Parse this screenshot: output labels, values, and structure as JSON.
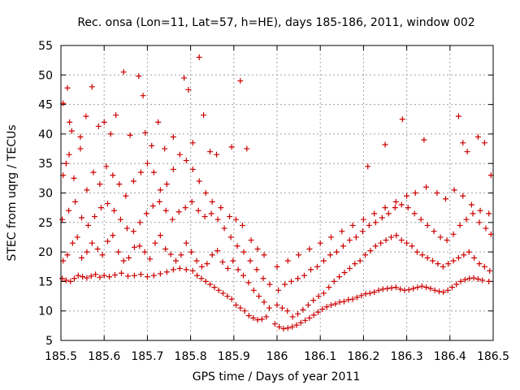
{
  "chart_data": {
    "type": "scatter",
    "title": "Rec. onsa (Lon=11, Lat=57, h=HE), days 185-186, 2011, window 002",
    "xlabel": "GPS time / Days of year 2011",
    "ylabel": "STEC from uqrg / TECUs",
    "xlim": [
      185.5,
      186.5
    ],
    "ylim": [
      5,
      55
    ],
    "xticks": [
      "185.5",
      "185.6",
      "185.7",
      "185.8",
      "185.9",
      "186",
      "186.1",
      "186.2",
      "186.3",
      "186.4",
      "186.5"
    ],
    "yticks": [
      "5",
      "10",
      "15",
      "20",
      "25",
      "30",
      "35",
      "40",
      "45",
      "50",
      "55"
    ],
    "grid": true,
    "legend": "none",
    "marker": "plus",
    "color": "#cc0000",
    "points": [
      [
        185.503,
        15.5
      ],
      [
        185.512,
        15.2
      ],
      [
        185.522,
        15.0
      ],
      [
        185.531,
        15.5
      ],
      [
        185.54,
        16.0
      ],
      [
        185.55,
        15.8
      ],
      [
        185.56,
        15.6
      ],
      [
        185.57,
        15.9
      ],
      [
        185.58,
        16.2
      ],
      [
        185.59,
        15.7
      ],
      [
        185.6,
        16.0
      ],
      [
        185.612,
        15.8
      ],
      [
        185.625,
        16.1
      ],
      [
        185.64,
        16.4
      ],
      [
        185.655,
        15.9
      ],
      [
        185.67,
        16.0
      ],
      [
        185.685,
        16.2
      ],
      [
        185.7,
        15.8
      ],
      [
        185.715,
        16.0
      ],
      [
        185.73,
        16.3
      ],
      [
        185.745,
        16.6
      ],
      [
        185.76,
        17.0
      ],
      [
        185.775,
        17.2
      ],
      [
        185.79,
        17.0
      ],
      [
        185.805,
        16.8
      ],
      [
        185.815,
        16.0
      ],
      [
        185.825,
        15.5
      ],
      [
        185.835,
        15.0
      ],
      [
        185.845,
        14.5
      ],
      [
        185.855,
        14.0
      ],
      [
        185.865,
        13.5
      ],
      [
        185.875,
        13.0
      ],
      [
        185.885,
        12.5
      ],
      [
        185.895,
        12.0
      ],
      [
        185.905,
        11.0
      ],
      [
        185.915,
        10.5
      ],
      [
        185.925,
        10.0
      ],
      [
        185.935,
        9.2
      ],
      [
        185.945,
        8.8
      ],
      [
        185.955,
        8.5
      ],
      [
        185.965,
        8.6
      ],
      [
        185.975,
        9.0
      ],
      [
        185.995,
        7.8
      ],
      [
        186.005,
        7.3
      ],
      [
        186.015,
        7.0
      ],
      [
        186.025,
        7.1
      ],
      [
        186.035,
        7.3
      ],
      [
        186.045,
        7.6
      ],
      [
        186.055,
        8.0
      ],
      [
        186.065,
        8.4
      ],
      [
        186.075,
        8.8
      ],
      [
        186.085,
        9.3
      ],
      [
        186.095,
        9.8
      ],
      [
        186.105,
        10.3
      ],
      [
        186.115,
        10.7
      ],
      [
        186.125,
        11.0
      ],
      [
        186.135,
        11.2
      ],
      [
        186.145,
        11.5
      ],
      [
        186.155,
        11.6
      ],
      [
        186.165,
        11.9
      ],
      [
        186.175,
        12.0
      ],
      [
        186.185,
        12.3
      ],
      [
        186.195,
        12.6
      ],
      [
        186.205,
        12.9
      ],
      [
        186.215,
        13.0
      ],
      [
        186.225,
        13.2
      ],
      [
        186.235,
        13.5
      ],
      [
        186.245,
        13.7
      ],
      [
        186.255,
        13.8
      ],
      [
        186.265,
        13.9
      ],
      [
        186.275,
        14.0
      ],
      [
        186.285,
        13.7
      ],
      [
        186.295,
        13.5
      ],
      [
        186.305,
        13.6
      ],
      [
        186.315,
        13.8
      ],
      [
        186.325,
        14.0
      ],
      [
        186.335,
        14.2
      ],
      [
        186.345,
        14.0
      ],
      [
        186.355,
        13.8
      ],
      [
        186.365,
        13.5
      ],
      [
        186.375,
        13.3
      ],
      [
        186.385,
        13.2
      ],
      [
        186.395,
        13.5
      ],
      [
        186.405,
        14.0
      ],
      [
        186.415,
        14.5
      ],
      [
        186.425,
        15.0
      ],
      [
        186.435,
        15.3
      ],
      [
        186.445,
        15.5
      ],
      [
        186.455,
        15.6
      ],
      [
        186.465,
        15.4
      ],
      [
        186.475,
        15.2
      ],
      [
        186.49,
        15.0
      ],
      [
        185.505,
        18.5
      ],
      [
        185.515,
        19.5
      ],
      [
        185.527,
        21.5
      ],
      [
        185.538,
        22.5
      ],
      [
        185.548,
        19.0
      ],
      [
        185.56,
        20.0
      ],
      [
        185.572,
        21.5
      ],
      [
        185.585,
        20.5
      ],
      [
        185.596,
        19.5
      ],
      [
        185.608,
        21.8
      ],
      [
        185.62,
        22.8
      ],
      [
        185.633,
        20.0
      ],
      [
        185.645,
        18.5
      ],
      [
        185.657,
        19.0
      ],
      [
        185.67,
        20.8
      ],
      [
        185.682,
        21.0
      ],
      [
        185.694,
        20.0
      ],
      [
        185.706,
        18.8
      ],
      [
        185.718,
        21.5
      ],
      [
        185.73,
        22.8
      ],
      [
        185.742,
        20.5
      ],
      [
        185.754,
        19.6
      ],
      [
        185.766,
        18.5
      ],
      [
        185.778,
        19.5
      ],
      [
        185.79,
        21.5
      ],
      [
        185.802,
        20.0
      ],
      [
        185.814,
        18.5
      ],
      [
        185.826,
        17.5
      ],
      [
        185.838,
        18.0
      ],
      [
        185.85,
        19.5
      ],
      [
        185.862,
        20.2
      ],
      [
        185.874,
        18.3
      ],
      [
        185.886,
        17.2
      ],
      [
        185.898,
        18.5
      ],
      [
        185.91,
        17.0
      ],
      [
        185.922,
        16.0
      ],
      [
        185.934,
        14.8
      ],
      [
        185.946,
        13.5
      ],
      [
        185.958,
        12.5
      ],
      [
        185.97,
        11.5
      ],
      [
        185.982,
        10.5
      ],
      [
        186.0,
        11.0
      ],
      [
        186.012,
        10.5
      ],
      [
        186.024,
        10.0
      ],
      [
        186.036,
        9.0
      ],
      [
        186.048,
        9.5
      ],
      [
        186.06,
        10.2
      ],
      [
        186.072,
        11.0
      ],
      [
        186.084,
        11.8
      ],
      [
        186.096,
        12.5
      ],
      [
        186.108,
        13.0
      ],
      [
        186.12,
        14.0
      ],
      [
        186.132,
        15.0
      ],
      [
        186.144,
        15.8
      ],
      [
        186.156,
        16.5
      ],
      [
        186.168,
        17.2
      ],
      [
        186.18,
        18.0
      ],
      [
        186.192,
        18.5
      ],
      [
        186.204,
        19.5
      ],
      [
        186.216,
        20.2
      ],
      [
        186.228,
        21.0
      ],
      [
        186.24,
        21.5
      ],
      [
        186.252,
        22.0
      ],
      [
        186.264,
        22.5
      ],
      [
        186.276,
        22.8
      ],
      [
        186.288,
        22.0
      ],
      [
        186.3,
        21.5
      ],
      [
        186.312,
        21.0
      ],
      [
        186.324,
        20.0
      ],
      [
        186.336,
        19.5
      ],
      [
        186.348,
        19.0
      ],
      [
        186.36,
        18.5
      ],
      [
        186.372,
        18.0
      ],
      [
        186.384,
        17.5
      ],
      [
        186.396,
        18.0
      ],
      [
        186.408,
        18.5
      ],
      [
        186.42,
        19.0
      ],
      [
        186.432,
        19.5
      ],
      [
        186.444,
        20.0
      ],
      [
        186.456,
        19.0
      ],
      [
        186.468,
        18.0
      ],
      [
        186.48,
        17.5
      ],
      [
        186.492,
        16.8
      ],
      [
        185.503,
        25.5
      ],
      [
        185.518,
        27.0
      ],
      [
        185.533,
        28.5
      ],
      [
        185.548,
        25.8
      ],
      [
        185.563,
        24.5
      ],
      [
        185.578,
        26.0
      ],
      [
        185.593,
        27.5
      ],
      [
        185.608,
        28.2
      ],
      [
        185.623,
        27.0
      ],
      [
        185.638,
        25.5
      ],
      [
        185.653,
        24.0
      ],
      [
        185.668,
        23.5
      ],
      [
        185.683,
        25.0
      ],
      [
        185.698,
        26.5
      ],
      [
        185.713,
        27.8
      ],
      [
        185.728,
        28.5
      ],
      [
        185.743,
        27.0
      ],
      [
        185.758,
        25.5
      ],
      [
        185.773,
        26.8
      ],
      [
        185.788,
        27.5
      ],
      [
        185.803,
        28.5
      ],
      [
        185.818,
        27.0
      ],
      [
        185.833,
        26.0
      ],
      [
        185.848,
        26.5
      ],
      [
        185.863,
        25.5
      ],
      [
        185.878,
        24.0
      ],
      [
        185.893,
        22.5
      ],
      [
        185.908,
        21.0
      ],
      [
        185.923,
        20.0
      ],
      [
        185.938,
        18.5
      ],
      [
        185.953,
        17.0
      ],
      [
        185.968,
        15.5
      ],
      [
        185.983,
        14.5
      ],
      [
        186.003,
        13.5
      ],
      [
        186.018,
        14.5
      ],
      [
        186.033,
        15.0
      ],
      [
        186.048,
        15.5
      ],
      [
        186.063,
        16.0
      ],
      [
        186.078,
        17.0
      ],
      [
        186.093,
        17.5
      ],
      [
        186.108,
        18.5
      ],
      [
        186.123,
        19.5
      ],
      [
        186.138,
        20.0
      ],
      [
        186.153,
        21.0
      ],
      [
        186.168,
        22.0
      ],
      [
        186.183,
        22.5
      ],
      [
        186.198,
        23.5
      ],
      [
        186.213,
        24.5
      ],
      [
        186.228,
        25.0
      ],
      [
        186.243,
        25.8
      ],
      [
        186.258,
        26.5
      ],
      [
        186.273,
        27.5
      ],
      [
        186.288,
        28.0
      ],
      [
        186.303,
        27.5
      ],
      [
        186.318,
        26.5
      ],
      [
        186.333,
        25.5
      ],
      [
        186.348,
        24.5
      ],
      [
        186.363,
        23.5
      ],
      [
        186.378,
        22.5
      ],
      [
        186.393,
        22.0
      ],
      [
        186.408,
        23.0
      ],
      [
        186.423,
        24.5
      ],
      [
        186.438,
        25.5
      ],
      [
        186.453,
        26.5
      ],
      [
        186.468,
        25.0
      ],
      [
        186.483,
        24.0
      ],
      [
        186.495,
        23.0
      ],
      [
        185.505,
        33.0
      ],
      [
        185.512,
        35.0
      ],
      [
        185.519,
        36.5
      ],
      [
        185.53,
        32.5
      ],
      [
        185.545,
        37.5
      ],
      [
        185.56,
        30.5
      ],
      [
        185.575,
        33.5
      ],
      [
        185.59,
        31.5
      ],
      [
        185.605,
        34.5
      ],
      [
        185.62,
        33.0
      ],
      [
        185.635,
        31.5
      ],
      [
        185.65,
        29.5
      ],
      [
        185.668,
        32.0
      ],
      [
        185.685,
        33.5
      ],
      [
        185.7,
        35.0
      ],
      [
        185.715,
        33.5
      ],
      [
        185.73,
        30.5
      ],
      [
        185.745,
        31.5
      ],
      [
        185.76,
        34.0
      ],
      [
        185.775,
        36.5
      ],
      [
        185.79,
        35.5
      ],
      [
        185.805,
        34.0
      ],
      [
        185.82,
        32.0
      ],
      [
        185.835,
        30.0
      ],
      [
        185.85,
        28.5
      ],
      [
        185.87,
        27.5
      ],
      [
        185.89,
        26.0
      ],
      [
        185.905,
        25.5
      ],
      [
        185.92,
        24.5
      ],
      [
        185.94,
        22.0
      ],
      [
        185.955,
        20.5
      ],
      [
        185.97,
        19.5
      ],
      [
        186.0,
        17.5
      ],
      [
        186.025,
        18.5
      ],
      [
        186.05,
        19.5
      ],
      [
        186.075,
        20.5
      ],
      [
        186.1,
        21.5
      ],
      [
        186.125,
        22.5
      ],
      [
        186.15,
        23.5
      ],
      [
        186.175,
        24.5
      ],
      [
        186.2,
        25.5
      ],
      [
        186.225,
        26.5
      ],
      [
        186.25,
        27.5
      ],
      [
        186.275,
        28.5
      ],
      [
        186.3,
        29.5
      ],
      [
        186.32,
        30.0
      ],
      [
        186.345,
        31.0
      ],
      [
        186.37,
        30.0
      ],
      [
        186.39,
        29.0
      ],
      [
        186.41,
        30.5
      ],
      [
        186.43,
        29.5
      ],
      [
        186.45,
        28.0
      ],
      [
        186.47,
        27.0
      ],
      [
        186.49,
        26.5
      ],
      [
        185.505,
        45.2
      ],
      [
        185.515,
        47.8
      ],
      [
        185.52,
        42.0
      ],
      [
        185.525,
        40.5
      ],
      [
        185.545,
        39.5
      ],
      [
        185.558,
        43.0
      ],
      [
        185.572,
        48.0
      ],
      [
        185.587,
        41.3
      ],
      [
        185.6,
        42.0
      ],
      [
        185.615,
        40.0
      ],
      [
        185.627,
        43.2
      ],
      [
        185.645,
        50.5
      ],
      [
        185.66,
        39.8
      ],
      [
        185.68,
        49.8
      ],
      [
        185.69,
        46.5
      ],
      [
        185.695,
        40.2
      ],
      [
        185.71,
        38.0
      ],
      [
        185.725,
        42.0
      ],
      [
        185.74,
        37.5
      ],
      [
        185.76,
        39.5
      ],
      [
        185.785,
        49.5
      ],
      [
        185.795,
        47.5
      ],
      [
        185.805,
        38.5
      ],
      [
        185.82,
        53.0
      ],
      [
        185.83,
        43.2
      ],
      [
        185.845,
        37.0
      ],
      [
        185.86,
        36.5
      ],
      [
        185.895,
        37.8
      ],
      [
        185.915,
        49.0
      ],
      [
        185.93,
        37.5
      ],
      [
        186.21,
        34.5
      ],
      [
        186.25,
        38.2
      ],
      [
        186.29,
        42.5
      ],
      [
        186.34,
        39.0
      ],
      [
        186.42,
        43.0
      ],
      [
        186.43,
        38.5
      ],
      [
        186.44,
        37.0
      ],
      [
        186.465,
        39.5
      ],
      [
        186.48,
        38.5
      ],
      [
        186.495,
        33.0
      ]
    ]
  }
}
